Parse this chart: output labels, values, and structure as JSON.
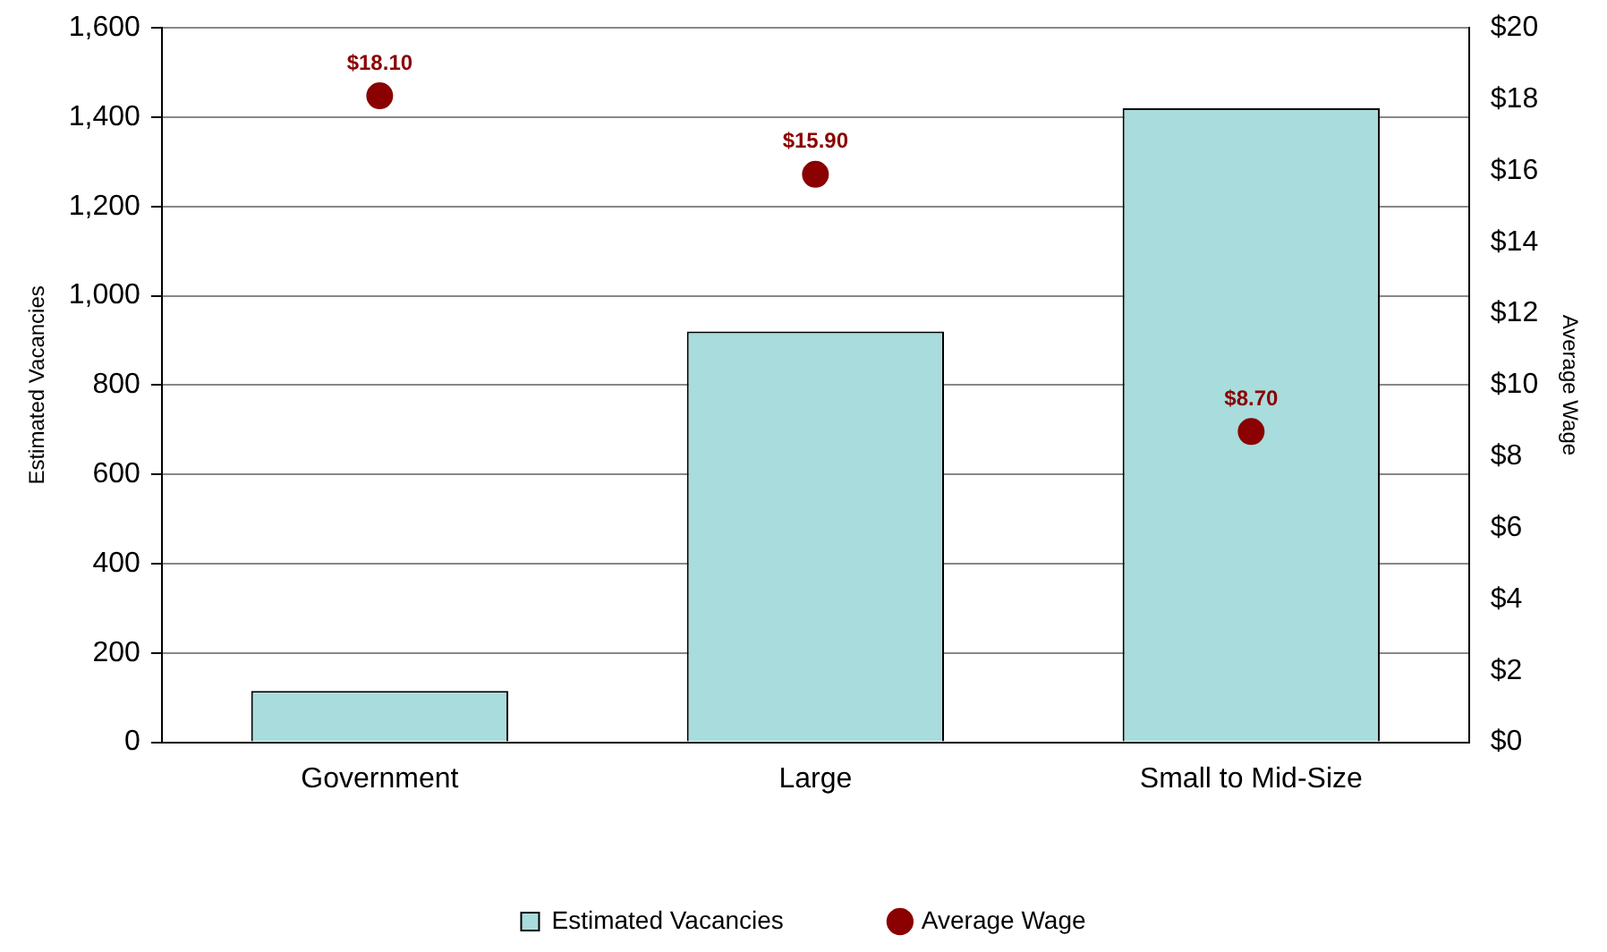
{
  "chart_data": {
    "type": "bar",
    "categories": [
      "Government",
      "Large",
      "Small to Mid-Size"
    ],
    "ylabel": "Estimated Vacancies",
    "y2label": "Average Wage",
    "series": [
      {
        "name": "Estimated Vacancies",
        "color": "#a9dcdc",
        "values": [
          115,
          920,
          1420
        ]
      },
      {
        "name": "Average Wage",
        "type": "scatter",
        "axis": "y2",
        "color": "#8b0000",
        "marker": "circle",
        "values": [
          18.1,
          15.9,
          8.7
        ],
        "value_labels": [
          "$18.10",
          "$15.90",
          "$8.70"
        ]
      }
    ],
    "ylim": [
      0,
      1600
    ],
    "yticks": [
      {
        "value": 0,
        "label": "0"
      },
      {
        "value": 200,
        "label": "200"
      },
      {
        "value": 400,
        "label": "400"
      },
      {
        "value": 600,
        "label": "600"
      },
      {
        "value": 800,
        "label": "800"
      },
      {
        "value": 1000,
        "label": "1,000"
      },
      {
        "value": 1200,
        "label": "1,200"
      },
      {
        "value": 1400,
        "label": "1,400"
      },
      {
        "value": 1600,
        "label": "1,600"
      }
    ],
    "y2lim": [
      0,
      20
    ],
    "y2ticks": [
      {
        "value": 0,
        "label": "$0"
      },
      {
        "value": 2,
        "label": "$2"
      },
      {
        "value": 4,
        "label": "$4"
      },
      {
        "value": 6,
        "label": "$6"
      },
      {
        "value": 8,
        "label": "$8"
      },
      {
        "value": 10,
        "label": "$10"
      },
      {
        "value": 12,
        "label": "$12"
      },
      {
        "value": 14,
        "label": "$14"
      },
      {
        "value": 16,
        "label": "$16"
      },
      {
        "value": 18,
        "label": "$18"
      },
      {
        "value": 20,
        "label": "$20"
      }
    ],
    "grid": "y",
    "legend": "bottom"
  }
}
